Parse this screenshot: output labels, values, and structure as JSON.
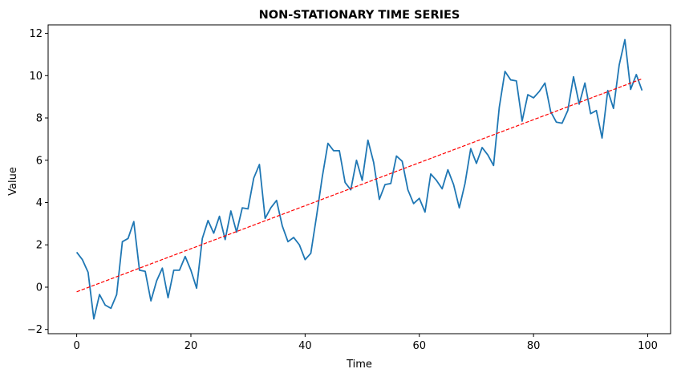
{
  "chart_data": {
    "type": "line",
    "title": "NON-STATIONARY TIME SERIES",
    "xlabel": "Time",
    "ylabel": "Value",
    "xlim": [
      -5,
      104
    ],
    "ylim": [
      -2.2,
      12.4
    ],
    "xticks": [
      0,
      20,
      40,
      60,
      80,
      100
    ],
    "yticks": [
      -2,
      0,
      2,
      4,
      6,
      8,
      10,
      12
    ],
    "xtick_labels": [
      "0",
      "20",
      "40",
      "60",
      "80",
      "100"
    ],
    "ytick_labels": [
      "−2",
      "0",
      "2",
      "4",
      "6",
      "8",
      "10",
      "12"
    ],
    "grid": false,
    "legend": "none",
    "series": [
      {
        "style": "solid",
        "color": "#1f77b4",
        "x": [
          0,
          1,
          2,
          3,
          4,
          5,
          6,
          7,
          8,
          9,
          10,
          11,
          12,
          13,
          14,
          15,
          16,
          17,
          18,
          19,
          20,
          21,
          22,
          23,
          24,
          25,
          26,
          27,
          28,
          29,
          30,
          31,
          32,
          33,
          34,
          35,
          36,
          37,
          38,
          39,
          40,
          41,
          42,
          43,
          44,
          45,
          46,
          47,
          48,
          49,
          50,
          51,
          52,
          53,
          54,
          55,
          56,
          57,
          58,
          59,
          60,
          61,
          62,
          63,
          64,
          65,
          66,
          67,
          68,
          69,
          70,
          71,
          72,
          73,
          74,
          75,
          76,
          77,
          78,
          79,
          80,
          81,
          82,
          83,
          84,
          85,
          86,
          87,
          88,
          89,
          90,
          91,
          92,
          93,
          94,
          95,
          96,
          97,
          98,
          99
        ],
        "values": [
          1.65,
          1.3,
          0.7,
          -1.5,
          -0.35,
          -0.85,
          -1.0,
          -0.35,
          2.15,
          2.3,
          3.1,
          0.8,
          0.75,
          -0.65,
          0.3,
          0.9,
          -0.5,
          0.8,
          0.8,
          1.45,
          0.8,
          -0.05,
          2.3,
          3.15,
          2.55,
          3.35,
          2.25,
          3.6,
          2.6,
          3.75,
          3.7,
          5.15,
          5.8,
          3.25,
          3.75,
          4.1,
          2.9,
          2.15,
          2.35,
          2.0,
          1.3,
          1.6,
          3.35,
          5.2,
          6.8,
          6.45,
          6.45,
          4.95,
          4.6,
          6.0,
          5.05,
          6.95,
          5.9,
          4.15,
          4.85,
          4.9,
          6.2,
          5.95,
          4.6,
          3.95,
          4.2,
          3.55,
          5.35,
          5.05,
          4.65,
          5.55,
          4.85,
          3.75,
          4.9,
          6.55,
          5.85,
          6.6,
          6.25,
          5.75,
          8.5,
          10.2,
          9.8,
          9.75,
          7.85,
          9.1,
          8.95,
          9.25,
          9.65,
          8.3,
          7.8,
          7.75,
          8.35,
          9.95,
          8.65,
          9.65,
          8.2,
          8.35,
          7.05,
          9.3,
          8.45,
          10.5,
          11.7,
          9.35,
          10.05,
          9.3
        ]
      },
      {
        "style": "dashed",
        "color": "#ff0000",
        "x": [
          0,
          99
        ],
        "values": [
          -0.22,
          9.85
        ]
      }
    ]
  }
}
